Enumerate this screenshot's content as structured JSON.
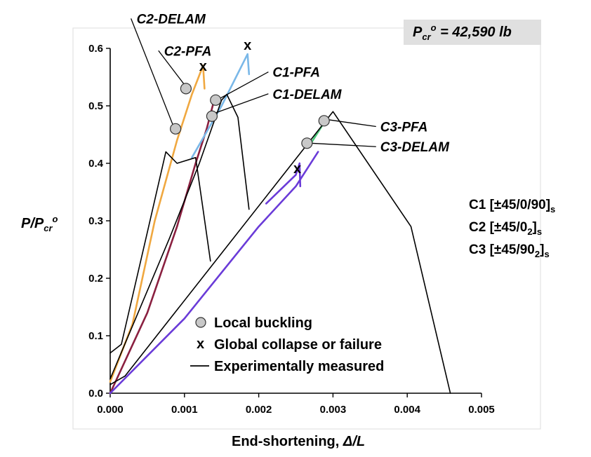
{
  "chart_data": {
    "type": "line",
    "xlabel_prefix": "End-shortening, ",
    "xlabel_symbol": "Δ/L",
    "ylabel": {
      "base": "P/P",
      "sub": "cr",
      "sup": "o"
    },
    "pcr_box": {
      "base": "P",
      "sub": "cr",
      "sup": "o",
      "rest": " = 42,590 lb"
    },
    "xlim": [
      0,
      0.005
    ],
    "ylim": [
      0,
      0.6
    ],
    "xticks": [
      "0.000",
      "0.001",
      "0.002",
      "0.003",
      "0.004",
      "0.005"
    ],
    "yticks": [
      "0.0",
      "0.1",
      "0.2",
      "0.3",
      "0.4",
      "0.5",
      "0.6"
    ],
    "colors": {
      "C1_analysis": "#8a2040",
      "C1_collapse_branch": "#7ab8e8",
      "C2_analysis": "#f0a840",
      "C3_analysis": "#6a3bd8",
      "C3_pfa_segment": "#4cc87a",
      "experiment": "#000000",
      "marker_fill": "#c8c8c8",
      "pcr_box_bg": "#e0e0e0"
    },
    "series": [
      {
        "name": "C1 analysis",
        "color_key": "C1_analysis",
        "points": [
          [
            0,
            0
          ],
          [
            0.0005,
            0.14
          ],
          [
            0.0009,
            0.29
          ],
          [
            0.00115,
            0.4
          ],
          [
            0.0013,
            0.46
          ],
          [
            0.0014,
            0.51
          ]
        ]
      },
      {
        "name": "C1 collapse branch",
        "color_key": "C1_collapse_branch",
        "points": [
          [
            0.0011,
            0.41
          ],
          [
            0.0015,
            0.5
          ],
          [
            0.00185,
            0.59
          ],
          [
            0.00187,
            0.555
          ]
        ]
      },
      {
        "name": "C2 analysis",
        "color_key": "C2_analysis",
        "points": [
          [
            0,
            0.02
          ],
          [
            0.0003,
            0.12
          ],
          [
            0.0006,
            0.3
          ],
          [
            0.0009,
            0.44
          ],
          [
            0.0011,
            0.52
          ],
          [
            0.00125,
            0.57
          ],
          [
            0.00127,
            0.53
          ]
        ]
      },
      {
        "name": "C3 analysis",
        "color_key": "C3_analysis",
        "points": [
          [
            0,
            0
          ],
          [
            0.001,
            0.13
          ],
          [
            0.002,
            0.29
          ],
          [
            0.0025,
            0.36
          ],
          [
            0.0028,
            0.42
          ]
        ]
      },
      {
        "name": "C3 post-buckling",
        "color_key": "C3_pfa_segment",
        "points": [
          [
            0.00268,
            0.43
          ],
          [
            0.0029,
            0.475
          ]
        ]
      },
      {
        "name": "C3 collapse branch",
        "color_key": "C3_analysis",
        "points": [
          [
            0.0021,
            0.33
          ],
          [
            0.0025,
            0.38
          ],
          [
            0.00255,
            0.4
          ],
          [
            0.00256,
            0.36
          ]
        ]
      },
      {
        "name": "Experiment C1",
        "color_key": "experiment",
        "points": [
          [
            0,
            0.025
          ],
          [
            0.0008,
            0.27
          ],
          [
            0.0012,
            0.4
          ],
          [
            0.0015,
            0.51
          ],
          [
            0.00157,
            0.52
          ],
          [
            0.00172,
            0.48
          ],
          [
            0.00187,
            0.32
          ]
        ]
      },
      {
        "name": "Experiment C2",
        "color_key": "experiment",
        "points": [
          [
            0,
            0.07
          ],
          [
            0.00015,
            0.085
          ],
          [
            0.0005,
            0.28
          ],
          [
            0.00075,
            0.42
          ],
          [
            0.0009,
            0.4
          ],
          [
            0.00115,
            0.41
          ],
          [
            0.00125,
            0.32
          ],
          [
            0.00135,
            0.23
          ]
        ]
      },
      {
        "name": "Experiment C3",
        "color_key": "experiment",
        "points": [
          [
            0,
            0.015
          ],
          [
            0.0002,
            0.03
          ],
          [
            0.003,
            0.49
          ],
          [
            0.00405,
            0.29
          ],
          [
            0.00458,
            0.0
          ]
        ]
      }
    ],
    "local_buckling": [
      [
        0.00102,
        0.53
      ],
      [
        0.00142,
        0.51
      ],
      [
        0.00137,
        0.482
      ],
      [
        0.00088,
        0.46
      ],
      [
        0.00288,
        0.474
      ],
      [
        0.00265,
        0.435
      ]
    ],
    "global_collapse": [
      [
        0.00125,
        0.568
      ],
      [
        0.00185,
        0.605
      ],
      [
        0.00252,
        0.39
      ]
    ],
    "annotations": [
      {
        "text": "C2-DELAM",
        "line_from": [
          0.00028,
          0.652
        ],
        "line_to": [
          0.00085,
          0.465
        ]
      },
      {
        "text": "C2-PFA",
        "line_from": [
          0.00065,
          0.596
        ],
        "line_to": [
          0.00101,
          0.535
        ]
      },
      {
        "text": "C1-PFA",
        "line_from": [
          0.00213,
          0.559
        ],
        "line_to": [
          0.00145,
          0.511
        ]
      },
      {
        "text": "C1-DELAM",
        "line_from": [
          0.00213,
          0.521
        ],
        "line_to": [
          0.00138,
          0.486
        ]
      },
      {
        "text": "C3-PFA",
        "line_from": [
          0.00358,
          0.464
        ],
        "line_to": [
          0.00293,
          0.476
        ]
      },
      {
        "text": "C3-DELAM",
        "line_from": [
          0.00358,
          0.429
        ],
        "line_to": [
          0.0027,
          0.435
        ]
      }
    ],
    "legend": {
      "placement": "bottom-center",
      "entries": [
        {
          "symbol": "circle",
          "label": "Local buckling"
        },
        {
          "symbol": "x",
          "label": "Global collapse or failure"
        },
        {
          "symbol": "line",
          "label": "Experimentally measured"
        }
      ]
    },
    "layups": [
      {
        "prefix": "C1 [±45/0/90]",
        "sub": "s",
        "tail": ""
      },
      {
        "prefix": "C2 [±45/0",
        "sub2": "2",
        "tail": "]",
        "sub": "s"
      },
      {
        "prefix": "C3 [±45/90",
        "sub2": "2",
        "tail": "]",
        "sub": "s"
      }
    ],
    "x_marker_glyph": "x"
  }
}
